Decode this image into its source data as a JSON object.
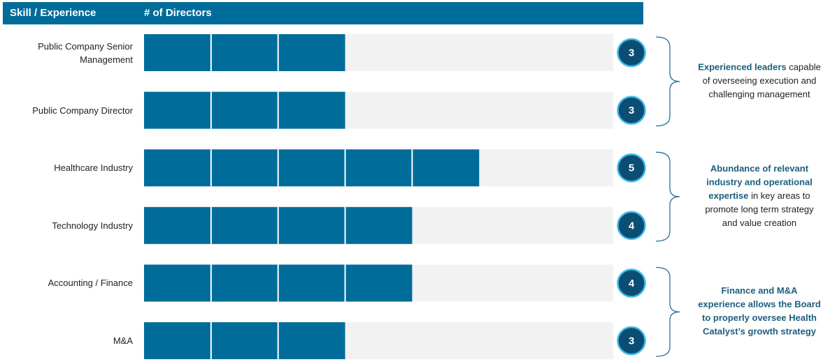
{
  "chart_data": {
    "type": "bar",
    "orientation": "horizontal",
    "header": {
      "left": "Skill / Experience",
      "right": "# of Directors"
    },
    "categories": [
      "Public Company Senior Management",
      "Public Company Director",
      "Healthcare Industry",
      "Technology Industry",
      "Accounting / Finance",
      "M&A"
    ],
    "values": [
      3,
      3,
      5,
      4,
      4,
      3
    ],
    "xlim": [
      0,
      7
    ],
    "color": "#006c9a",
    "track_color": "#f2f2f2",
    "badge_color": "#0b4d73",
    "badge_border": "#3eb8e8",
    "annotations": [
      {
        "lines": [
          [
            {
              "text": "Experienced leaders",
              "bold": true
            },
            {
              "text": " capable",
              "bold": false
            }
          ],
          [
            {
              "text": "of overseeing execution and",
              "bold": false
            }
          ],
          [
            {
              "text": "challenging management",
              "bold": false
            }
          ]
        ]
      },
      {
        "lines": [
          [
            {
              "text": "Abundance of relevant",
              "bold": true
            }
          ],
          [
            {
              "text": "industry and operational",
              "bold": true
            }
          ],
          [
            {
              "text": "expertise",
              "bold": true
            },
            {
              "text": " in key areas to",
              "bold": false
            }
          ],
          [
            {
              "text": "promote long term strategy",
              "bold": false
            }
          ],
          [
            {
              "text": "and value creation",
              "bold": false
            }
          ]
        ]
      },
      {
        "lines": [
          [
            {
              "text": "Finance and M&A",
              "bold": true
            }
          ],
          [
            {
              "text": "experience allows the Board",
              "bold": true
            }
          ],
          [
            {
              "text": "to properly oversee Health",
              "bold": true
            }
          ],
          [
            {
              "text": "Catalyst’s growth strategy",
              "bold": true
            }
          ]
        ]
      }
    ]
  }
}
